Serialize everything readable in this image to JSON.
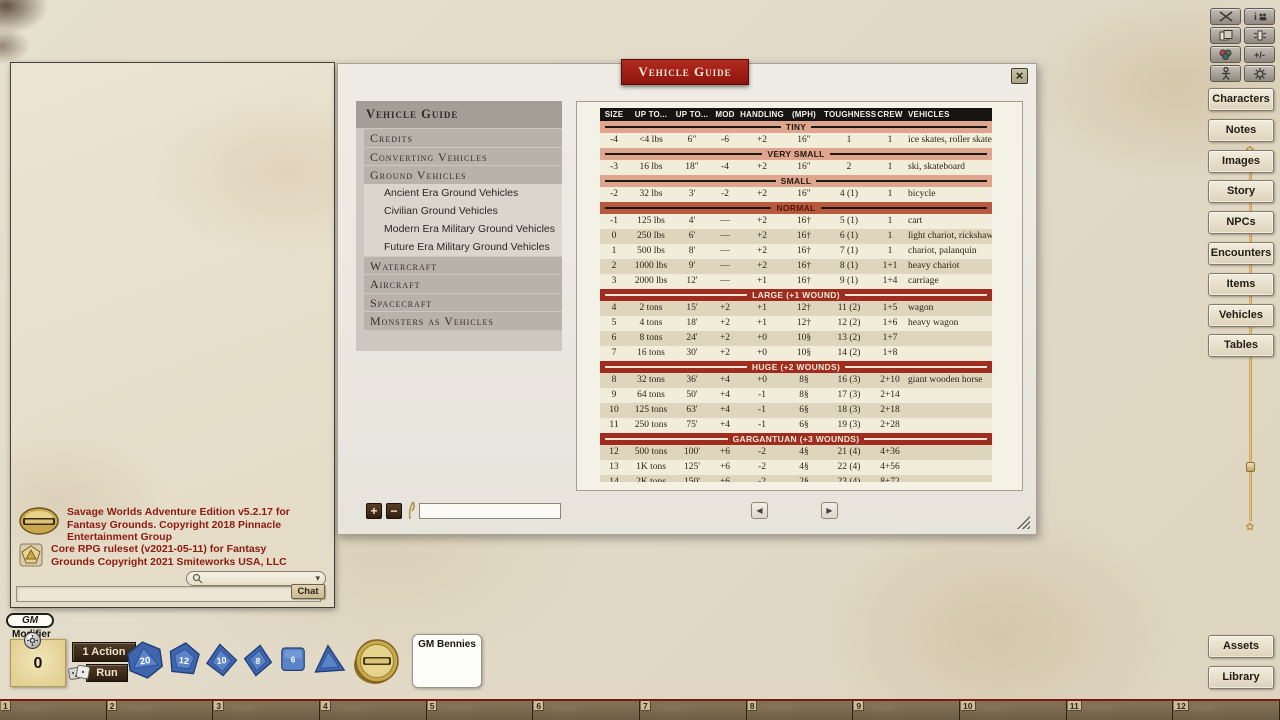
{
  "colors": {
    "band_light": "#e0a58e",
    "band_normal": "#b55a3c",
    "band_dark": "#a02c1f",
    "table_header_bg": "#151412",
    "row_cream": "#f2ecda",
    "row_beige": "#ddd5bc",
    "title_ribbon": "#9e1d14",
    "chat_text": "#8c1a10",
    "dice_blue": "#4a72b8",
    "coin_gold": "#c9a84c"
  },
  "window": {
    "title": "Vehicle Guide",
    "close_icon": "×"
  },
  "nav": {
    "items": [
      {
        "type": "header",
        "label": "Vehicle Guide"
      },
      {
        "type": "section",
        "label": "Credits"
      },
      {
        "type": "section",
        "label": "Converting Vehicles"
      },
      {
        "type": "section",
        "label": "Ground Vehicles"
      },
      {
        "type": "sub",
        "label": "Ancient Era Ground Vehicles"
      },
      {
        "type": "sub",
        "label": "Civilian Ground Vehicles"
      },
      {
        "type": "sub",
        "label": "Modern Era Military Ground Vehicles"
      },
      {
        "type": "sub",
        "label": "Future Era Military Ground Vehicles"
      },
      {
        "type": "section",
        "label": "Watercraft"
      },
      {
        "type": "section",
        "label": "Aircraft"
      },
      {
        "type": "section",
        "label": "Spacecraft"
      },
      {
        "type": "section",
        "label": "Monsters as Vehicles"
      }
    ]
  },
  "table": {
    "headers": [
      "SIZE",
      "UP TO...",
      "UP TO...",
      "MOD",
      "HANDLING",
      "(MPH)",
      "TOUGHNESS",
      "CREW",
      "VEHICLES"
    ],
    "rows": [
      {
        "type": "band",
        "style": "light",
        "label": "TINY"
      },
      {
        "type": "data",
        "shade": "cream",
        "cells": [
          "-4",
          "<4 lbs",
          "6\"",
          "-6",
          "+2",
          "16\"",
          "1",
          "1",
          "ice skates, roller skates"
        ]
      },
      {
        "type": "band",
        "style": "light",
        "label": "VERY SMALL"
      },
      {
        "type": "data",
        "shade": "cream",
        "cells": [
          "-3",
          "16 lbs",
          "18\"",
          "-4",
          "+2",
          "16\"",
          "2",
          "1",
          "ski, skateboard"
        ]
      },
      {
        "type": "band",
        "style": "light",
        "label": "SMALL"
      },
      {
        "type": "data",
        "shade": "cream",
        "cells": [
          "-2",
          "32 lbs",
          "3'",
          "-2",
          "+2",
          "16\"",
          "4 (1)",
          "1",
          "bicycle"
        ]
      },
      {
        "type": "band",
        "style": "normal",
        "label": "NORMAL"
      },
      {
        "type": "data",
        "shade": "cream",
        "cells": [
          "-1",
          "125 lbs",
          "4'",
          "—",
          "+2",
          "16†",
          "5 (1)",
          "1",
          "cart"
        ]
      },
      {
        "type": "data",
        "shade": "beige",
        "cells": [
          "0",
          "250 lbs",
          "6'",
          "—",
          "+2",
          "16†",
          "6 (1)",
          "1",
          "light chariot, rickshaw"
        ]
      },
      {
        "type": "data",
        "shade": "cream",
        "cells": [
          "1",
          "500 lbs",
          "8'",
          "—",
          "+2",
          "16†",
          "7 (1)",
          "1",
          "chariot, palanquin"
        ]
      },
      {
        "type": "data",
        "shade": "beige",
        "cells": [
          "2",
          "1000 lbs",
          "9'",
          "—",
          "+2",
          "16†",
          "8 (1)",
          "1+1",
          "heavy chariot"
        ]
      },
      {
        "type": "data",
        "shade": "cream",
        "cells": [
          "3",
          "2000 lbs",
          "12'",
          "—",
          "+1",
          "16†",
          "9 (1)",
          "1+4",
          "carriage"
        ]
      },
      {
        "type": "band",
        "style": "dark",
        "label": "LARGE (+1 WOUND)"
      },
      {
        "type": "data",
        "shade": "beige",
        "cells": [
          "4",
          "2 tons",
          "15'",
          "+2",
          "+1",
          "12†",
          "11 (2)",
          "1+5",
          "wagon"
        ]
      },
      {
        "type": "data",
        "shade": "cream",
        "cells": [
          "5",
          "4 tons",
          "18'",
          "+2",
          "+1",
          "12†",
          "12 (2)",
          "1+6",
          "heavy wagon"
        ]
      },
      {
        "type": "data",
        "shade": "beige",
        "cells": [
          "6",
          "8 tons",
          "24'",
          "+2",
          "+0",
          "10§",
          "13 (2)",
          "1+7",
          ""
        ]
      },
      {
        "type": "data",
        "shade": "cream",
        "cells": [
          "7",
          "16 tons",
          "30'",
          "+2",
          "+0",
          "10§",
          "14 (2)",
          "1+8",
          ""
        ]
      },
      {
        "type": "band",
        "style": "dark",
        "label": "HUGE (+2 WOUNDS)"
      },
      {
        "type": "data",
        "shade": "beige",
        "cells": [
          "8",
          "32 tons",
          "36'",
          "+4",
          "+0",
          "8§",
          "16 (3)",
          "2+10",
          "giant wooden horse"
        ]
      },
      {
        "type": "data",
        "shade": "cream",
        "cells": [
          "9",
          "64 tons",
          "50'",
          "+4",
          "-1",
          "8§",
          "17 (3)",
          "2+14",
          ""
        ]
      },
      {
        "type": "data",
        "shade": "beige",
        "cells": [
          "10",
          "125 tons",
          "63'",
          "+4",
          "-1",
          "6§",
          "18 (3)",
          "2+18",
          ""
        ]
      },
      {
        "type": "data",
        "shade": "cream",
        "cells": [
          "11",
          "250 tons",
          "75'",
          "+4",
          "-1",
          "6§",
          "19 (3)",
          "2+28",
          ""
        ]
      },
      {
        "type": "band",
        "style": "dark",
        "label": "GARGANTUAN (+3 WOUNDS)"
      },
      {
        "type": "data",
        "shade": "beige",
        "cells": [
          "12",
          "500 tons",
          "100'",
          "+6",
          "-2",
          "4§",
          "21 (4)",
          "4+36",
          ""
        ]
      },
      {
        "type": "data",
        "shade": "cream",
        "cells": [
          "13",
          "1K tons",
          "125'",
          "+6",
          "-2",
          "4§",
          "22 (4)",
          "4+56",
          ""
        ]
      },
      {
        "type": "data",
        "shade": "beige",
        "cells": [
          "14",
          "2K tons",
          "150'",
          "+6",
          "-2",
          "2§",
          "23 (4)",
          "8+72",
          ""
        ]
      }
    ]
  },
  "window_controls": {
    "plus": "+",
    "minus": "−",
    "filter_value": "",
    "prev_icon": "◀",
    "next_icon": "▶"
  },
  "toolbar": {
    "buttons": [
      {
        "name": "crossed-swords-icon"
      },
      {
        "name": "info-group-icon",
        "label": "i"
      },
      {
        "name": "cards-icon"
      },
      {
        "name": "lantern-icon"
      },
      {
        "name": "token-stack-icon"
      },
      {
        "name": "plus-minus-icon",
        "label": "+/-"
      },
      {
        "name": "figure-icon"
      },
      {
        "name": "gear-icon"
      }
    ]
  },
  "sidebar": {
    "buttons": [
      "Characters",
      "Notes",
      "Images",
      "Story",
      "NPCs",
      "Encounters",
      "Items",
      "Vehicles",
      "Tables"
    ],
    "bottom_buttons": [
      "Assets",
      "Library"
    ]
  },
  "chat": {
    "messages": [
      {
        "icon": "savage-worlds-logo",
        "text": "Savage Worlds Adventure Edition v5.2.17 for Fantasy Grounds. Copyright 2018 Pinnacle Entertainment Group"
      },
      {
        "icon": "core-rpg-logo",
        "text": "Core RPG ruleset (v2021-05-11) for Fantasy Grounds Copyright 2021 Smiteworks USA, LLC"
      }
    ],
    "dropdown_arrow": "▾",
    "input_value": "",
    "tab_label": "Chat"
  },
  "gm_panel": {
    "gm_label": "GM",
    "modifier_label": "Modifier",
    "modifier_value": "0",
    "action_label": "1 Action",
    "run_label": "Run",
    "bennies_label": "GM Bennies"
  },
  "dice": [
    {
      "name": "d20",
      "value": "20"
    },
    {
      "name": "d12",
      "value": "12"
    },
    {
      "name": "d10",
      "value": "10"
    },
    {
      "name": "d8",
      "value": "8"
    },
    {
      "name": "d6",
      "value": "6"
    },
    {
      "name": "d4",
      "value": ""
    }
  ],
  "hotbar": {
    "slots": [
      "1",
      "2",
      "3",
      "4",
      "5",
      "6",
      "7",
      "8",
      "9",
      "10",
      "11",
      "12"
    ]
  }
}
